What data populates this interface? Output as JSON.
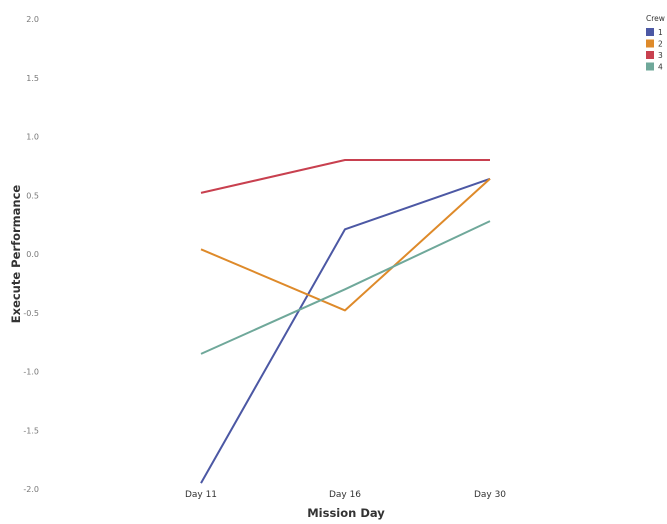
{
  "chart_data": {
    "type": "line",
    "title": "",
    "xlabel": "Mission Day",
    "ylabel": "Execute Performance",
    "categories": [
      "Day 11",
      "Day 16",
      "Day 30"
    ],
    "ylim": [
      -2.0,
      2.0
    ],
    "yticks": [
      "2.0",
      "1.5",
      "1.0",
      "0.5",
      "0.0",
      "-0.5",
      "-1.0",
      "-1.5",
      "-2.0"
    ],
    "ytick_values": [
      2.0,
      1.5,
      1.0,
      0.5,
      0.0,
      -0.5,
      -1.0,
      -1.5,
      -2.0
    ],
    "grid": false,
    "legend": {
      "title": "Crew",
      "placement": "top-right"
    },
    "series": [
      {
        "name": "1",
        "color": "#4c58a4",
        "values": [
          -1.95,
          0.21,
          0.64
        ]
      },
      {
        "name": "2",
        "color": "#de8a2a",
        "values": [
          0.04,
          -0.48,
          0.64
        ]
      },
      {
        "name": "3",
        "color": "#c8404f",
        "values": [
          0.52,
          0.8,
          0.8
        ]
      },
      {
        "name": "4",
        "color": "#6fa89a",
        "values": [
          -0.85,
          -0.3,
          0.28
        ]
      }
    ]
  }
}
